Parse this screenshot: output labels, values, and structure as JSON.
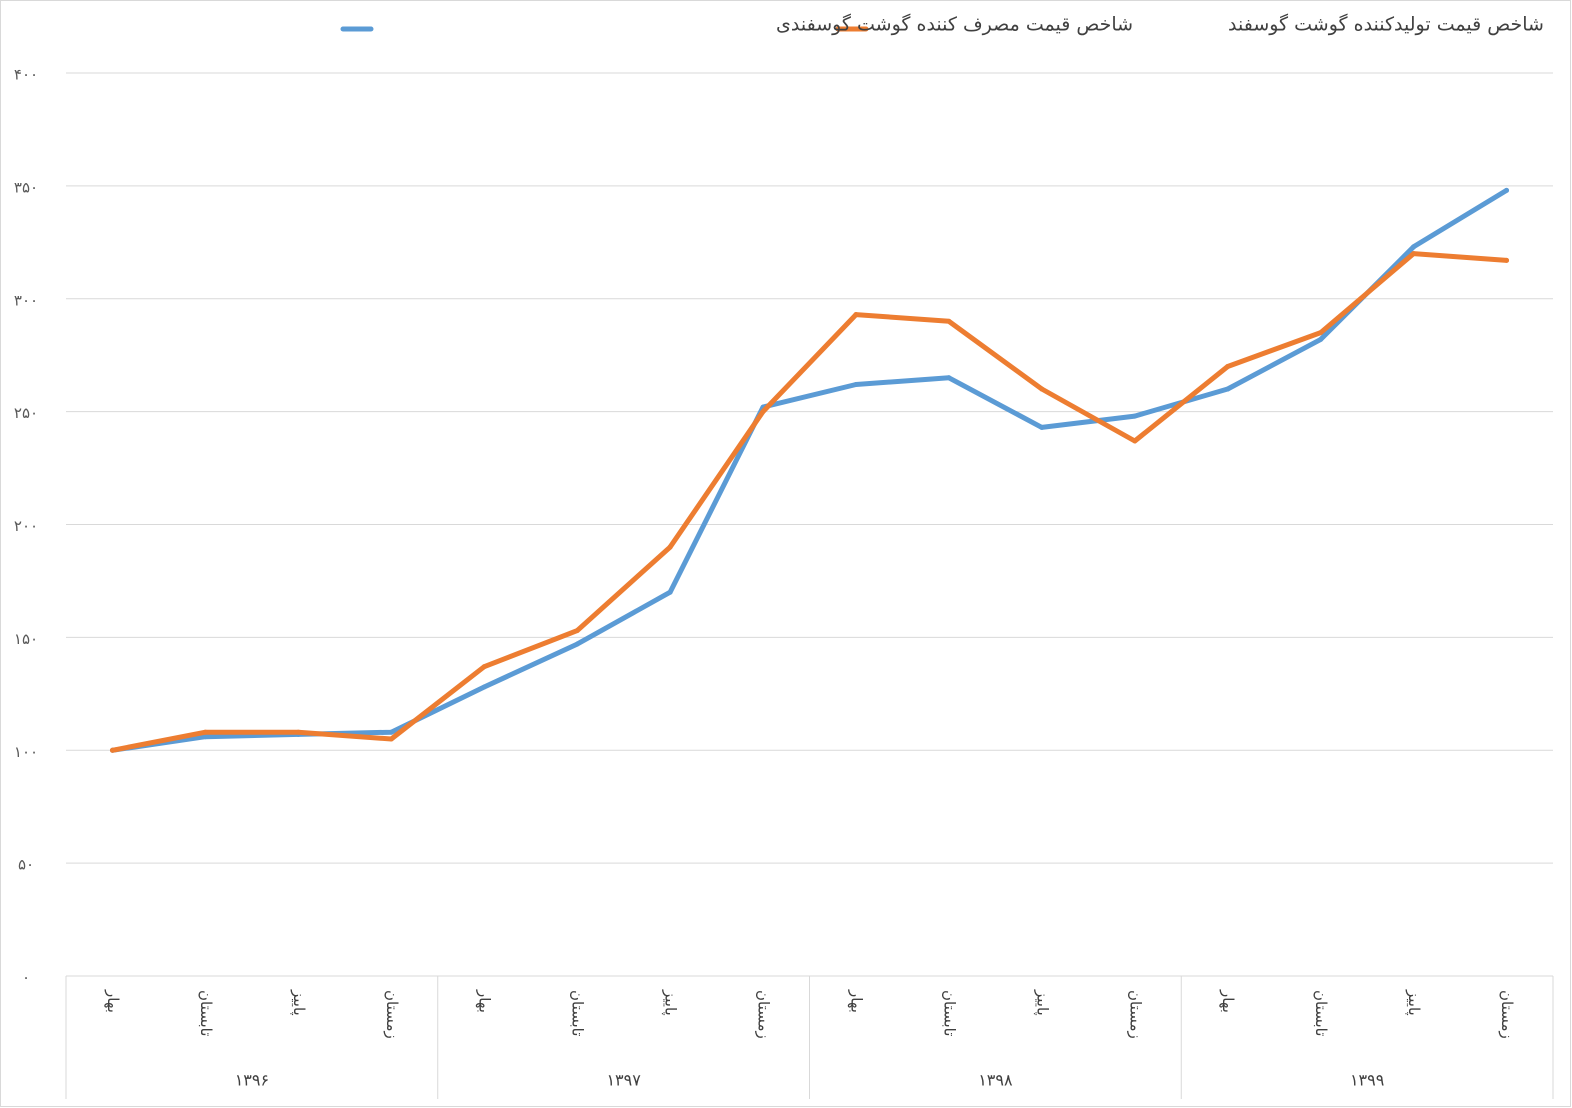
{
  "chart_data": {
    "type": "line",
    "title": "",
    "xlabel": "",
    "ylabel": "",
    "ylim": [
      0,
      400
    ],
    "yticks": [
      {
        "value": 0,
        "label": "۰"
      },
      {
        "value": 50,
        "label": "۵۰"
      },
      {
        "value": 100,
        "label": "۱۰۰"
      },
      {
        "value": 150,
        "label": "۱۵۰"
      },
      {
        "value": 200,
        "label": "۲۰۰"
      },
      {
        "value": 250,
        "label": "۲۵۰"
      },
      {
        "value": 300,
        "label": "۳۰۰"
      },
      {
        "value": 350,
        "label": "۳۵۰"
      },
      {
        "value": 400,
        "label": "۴۰۰"
      }
    ],
    "grid": true,
    "legend_position": "top",
    "year_groups": [
      {
        "label": "۱۳۹۶",
        "seasons": [
          "بهار",
          "تابستان",
          "پاییز",
          "زمستان"
        ]
      },
      {
        "label": "۱۳۹۷",
        "seasons": [
          "بهار",
          "تابستان",
          "پاییز",
          "زمستان"
        ]
      },
      {
        "label": "۱۳۹۸",
        "seasons": [
          "بهار",
          "تابستان",
          "پاییز",
          "زمستان"
        ]
      },
      {
        "label": "۱۳۹۹",
        "seasons": [
          "بهار",
          "تابستان",
          "پاییز",
          "زمستان"
        ]
      }
    ],
    "series": [
      {
        "name": "شاخص قیمت  مصرف کننده گوشت گوسفندی",
        "color": "#5B9BD5",
        "values": [
          100,
          106,
          107,
          108,
          128,
          147,
          170,
          252,
          262,
          265,
          243,
          248,
          260,
          282,
          323,
          348
        ]
      },
      {
        "name": "شاخص قیمت تولیدکننده گوشت گوسفند",
        "color": "#ED7D31",
        "values": [
          100,
          108,
          108,
          105,
          137,
          153,
          190,
          250,
          293,
          290,
          260,
          237,
          270,
          285,
          320,
          317
        ]
      }
    ]
  }
}
